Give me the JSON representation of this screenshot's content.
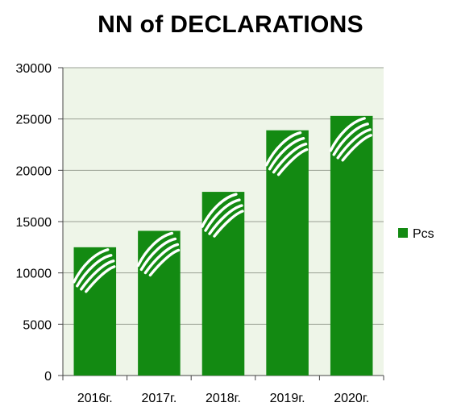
{
  "chart_data": {
    "type": "bar",
    "title": "NN of DECLARATIONS",
    "categories": [
      "2016г.",
      "2017г.",
      "2018г.",
      "2019г.",
      "2020г."
    ],
    "series": [
      {
        "name": "Pcs",
        "values": [
          12500,
          14100,
          17900,
          23900,
          25300
        ]
      }
    ],
    "ylim": [
      0,
      30000
    ],
    "yticks": [
      0,
      5000,
      10000,
      15000,
      20000,
      25000,
      30000
    ],
    "grid": true,
    "legend": "right",
    "colors": {
      "bar": "#138a12",
      "plot_bg": "#eef5e8",
      "grid": "#9aa094",
      "bar_icon": "#ffffff"
    }
  }
}
